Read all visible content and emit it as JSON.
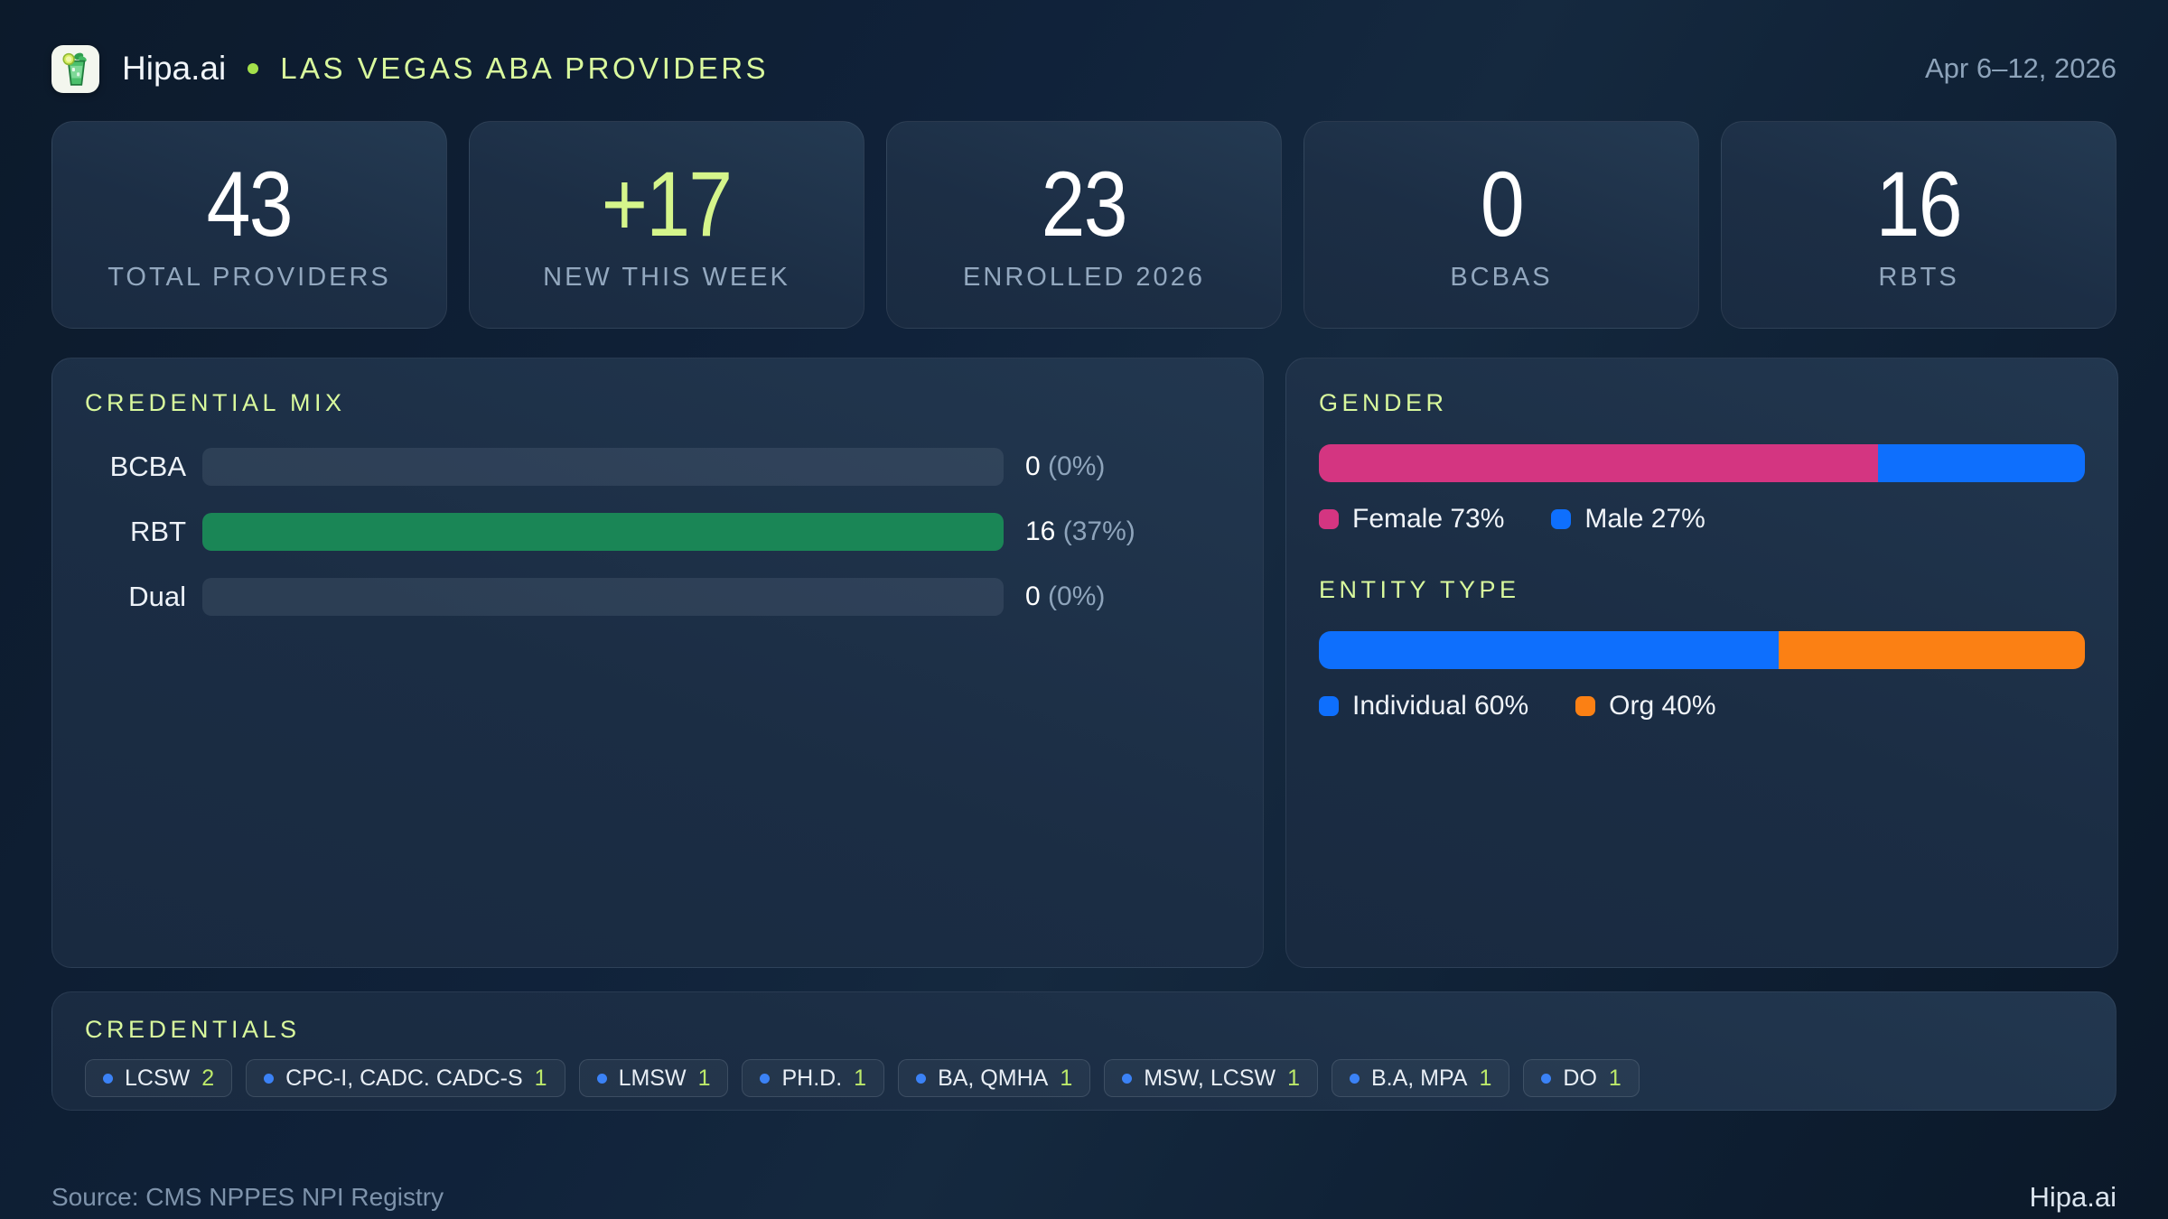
{
  "header": {
    "brand": "Hipa.ai",
    "title": "LAS VEGAS ABA PROVIDERS",
    "date_range": "Apr 6–12, 2026"
  },
  "colors": {
    "accent_green": "#d9f99d",
    "accent_dot": "#a3e04b",
    "rbt_green": "#1a8656",
    "female_pink": "#d43581",
    "male_blue": "#0e6ffd",
    "individual_blue": "#0e6ffd",
    "org_orange": "#fb8014",
    "chip_dot_blue": "#3b82f6"
  },
  "stats": [
    {
      "value": "43",
      "label": "TOTAL PROVIDERS"
    },
    {
      "value": "+17",
      "label": "NEW THIS WEEK"
    },
    {
      "value": "23",
      "label": "ENROLLED 2026"
    },
    {
      "value": "0",
      "label": "BCBAS"
    },
    {
      "value": "16",
      "label": "RBTS"
    }
  ],
  "credential_mix": {
    "title": "CREDENTIAL MIX",
    "rows": [
      {
        "label": "BCBA",
        "count": "0",
        "pct_label": "(0%)",
        "bar_pct": 0,
        "bar_color": "#1a8656"
      },
      {
        "label": "RBT",
        "count": "16",
        "pct_label": "(37%)",
        "bar_pct": 100,
        "bar_color": "#1a8656"
      },
      {
        "label": "Dual",
        "count": "0",
        "pct_label": "(0%)",
        "bar_pct": 0,
        "bar_color": "#1a8656"
      }
    ]
  },
  "gender": {
    "title": "GENDER",
    "segments": [
      {
        "name": "Female",
        "legend_label": "Female 73%",
        "pct": 73,
        "color": "#d43581"
      },
      {
        "name": "Male",
        "legend_label": "Male 27%",
        "pct": 27,
        "color": "#0e6ffd"
      }
    ]
  },
  "entity_type": {
    "title": "ENTITY TYPE",
    "segments": [
      {
        "name": "Individual",
        "legend_label": "Individual 60%",
        "pct": 60,
        "color": "#0e6ffd"
      },
      {
        "name": "Org",
        "legend_label": "Org 40%",
        "pct": 40,
        "color": "#fb8014"
      }
    ]
  },
  "credentials": {
    "title": "CREDENTIALS",
    "chips": [
      {
        "label": "LCSW",
        "count": "2"
      },
      {
        "label": "CPC-I, CADC. CADC-S",
        "count": "1"
      },
      {
        "label": "LMSW",
        "count": "1"
      },
      {
        "label": "PH.D.",
        "count": "1"
      },
      {
        "label": "BA, QMHA",
        "count": "1"
      },
      {
        "label": "MSW, LCSW",
        "count": "1"
      },
      {
        "label": "B.A, MPA",
        "count": "1"
      },
      {
        "label": "DO",
        "count": "1"
      }
    ]
  },
  "footer": {
    "source": "Source: CMS NPPES NPI Registry",
    "brand": "Hipa.ai"
  },
  "chart_data": [
    {
      "type": "bar",
      "title": "CREDENTIAL MIX",
      "orientation": "horizontal",
      "categories": [
        "BCBA",
        "RBT",
        "Dual"
      ],
      "values": [
        0,
        16,
        0
      ],
      "percent_labels": [
        "0%",
        "37%",
        "0%"
      ],
      "note": "RBT bar rendered at full track width (max of series)"
    },
    {
      "type": "bar",
      "title": "GENDER",
      "stacked": true,
      "series": [
        {
          "name": "Female",
          "values": [
            73
          ]
        },
        {
          "name": "Male",
          "values": [
            27
          ]
        }
      ],
      "unit": "%",
      "legend_position": "bottom"
    },
    {
      "type": "bar",
      "title": "ENTITY TYPE",
      "stacked": true,
      "series": [
        {
          "name": "Individual",
          "values": [
            60
          ]
        },
        {
          "name": "Org",
          "values": [
            40
          ]
        }
      ],
      "unit": "%",
      "legend_position": "bottom"
    }
  ]
}
